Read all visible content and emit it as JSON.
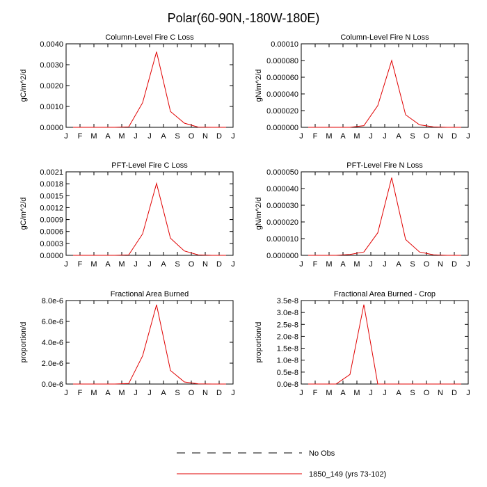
{
  "figure": {
    "title": "Polar(60-90N,-180W-180E)"
  },
  "months": [
    "J",
    "F",
    "M",
    "A",
    "M",
    "J",
    "J",
    "A",
    "S",
    "O",
    "N",
    "D",
    "J"
  ],
  "legend": {
    "entries": [
      {
        "label": "No Obs",
        "style": "dashed",
        "color": "#000000"
      },
      {
        "label": "1850_149 (yrs 73-102)",
        "style": "solid",
        "color": "#e00000"
      }
    ]
  },
  "chart_data": [
    {
      "type": "line",
      "title": "Column-Level Fire C Loss",
      "ylabel": "gC/m^2/d",
      "ylim": [
        0,
        0.004
      ],
      "yticks": [
        "0.0000",
        "0.0010",
        "0.0020",
        "0.0030",
        "0.0040"
      ],
      "x": [
        "Jan",
        "Feb",
        "Mar",
        "Apr",
        "May",
        "Jun",
        "Jul",
        "Aug",
        "Sep",
        "Oct",
        "Nov",
        "Dec"
      ],
      "series": [
        {
          "color": "#e00000",
          "values": [
            0,
            0,
            0,
            0,
            2e-05,
            0.00118,
            0.00362,
            0.00076,
            0.0002,
            1e-05,
            0,
            0
          ]
        }
      ]
    },
    {
      "type": "line",
      "title": "Column-Level Fire N Loss",
      "ylabel": "gN/m^2/d",
      "ylim": [
        0,
        0.0001
      ],
      "yticks": [
        "0.000000",
        "0.000020",
        "0.000040",
        "0.000060",
        "0.000080",
        "0.00010"
      ],
      "x": [
        "Jan",
        "Feb",
        "Mar",
        "Apr",
        "May",
        "Jun",
        "Jul",
        "Aug",
        "Sep",
        "Oct",
        "Nov",
        "Dec"
      ],
      "series": [
        {
          "color": "#e00000",
          "values": [
            0,
            0,
            0,
            0,
            2e-06,
            2.6e-05,
            8e-05,
            1.5e-05,
            3e-06,
            5e-07,
            0,
            0
          ]
        }
      ]
    },
    {
      "type": "line",
      "title": "PFT-Level Fire C Loss",
      "ylabel": "gC/m^2/d",
      "ylim": [
        0,
        0.0021
      ],
      "yticks": [
        "0.0000",
        "0.0003",
        "0.0006",
        "0.0009",
        "0.0012",
        "0.0015",
        "0.0018",
        "0.0021"
      ],
      "x": [
        "Jan",
        "Feb",
        "Mar",
        "Apr",
        "May",
        "Jun",
        "Jul",
        "Aug",
        "Sep",
        "Oct",
        "Nov",
        "Dec"
      ],
      "series": [
        {
          "color": "#e00000",
          "values": [
            0,
            0,
            0,
            0,
            1e-05,
            0.00054,
            0.00181,
            0.00043,
            0.00011,
            1e-05,
            0,
            0
          ]
        }
      ]
    },
    {
      "type": "line",
      "title": "PFT-Level Fire N Loss",
      "ylabel": "gN/m^2/d",
      "ylim": [
        0,
        5e-05
      ],
      "yticks": [
        "0.000000",
        "0.000010",
        "0.000020",
        "0.000030",
        "0.000040",
        "0.000050"
      ],
      "x": [
        "Jan",
        "Feb",
        "Mar",
        "Apr",
        "May",
        "Jun",
        "Jul",
        "Aug",
        "Sep",
        "Oct",
        "Nov",
        "Dec"
      ],
      "series": [
        {
          "color": "#e00000",
          "values": [
            0,
            0,
            0,
            5e-07,
            2e-06,
            1.35e-05,
            4.65e-05,
            9.5e-06,
            2e-06,
            3e-07,
            0,
            0
          ]
        }
      ]
    },
    {
      "type": "line",
      "title": "Fractional Area Burned",
      "ylabel": "proportion/d",
      "ylim": [
        0,
        8e-06
      ],
      "yticks": [
        "0.0e-6",
        "2.0e-6",
        "4.0e-6",
        "6.0e-6",
        "8.0e-6"
      ],
      "x": [
        "Jan",
        "Feb",
        "Mar",
        "Apr",
        "May",
        "Jun",
        "Jul",
        "Aug",
        "Sep",
        "Oct",
        "Nov",
        "Dec"
      ],
      "series": [
        {
          "color": "#e00000",
          "values": [
            0,
            0,
            0,
            0,
            5e-08,
            2.7e-06,
            7.6e-06,
            1.3e-06,
            2e-07,
            2e-08,
            0,
            0
          ]
        }
      ]
    },
    {
      "type": "line",
      "title": "Fractional Area Burned - Crop",
      "ylabel": "proportion/d",
      "ylim": [
        0,
        3.5e-08
      ],
      "yticks": [
        "0.0e-8",
        "0.5e-8",
        "1.0e-8",
        "1.5e-8",
        "2.0e-8",
        "2.5e-8",
        "3.0e-8",
        "3.5e-8"
      ],
      "x": [
        "Jan",
        "Feb",
        "Mar",
        "Apr",
        "May",
        "Jun",
        "Jul",
        "Aug",
        "Sep",
        "Oct",
        "Nov",
        "Dec"
      ],
      "series": [
        {
          "color": "#e00000",
          "values": [
            0,
            0,
            0,
            4e-09,
            3.33e-08,
            0,
            0,
            0,
            0,
            0,
            0,
            0
          ]
        }
      ]
    }
  ]
}
